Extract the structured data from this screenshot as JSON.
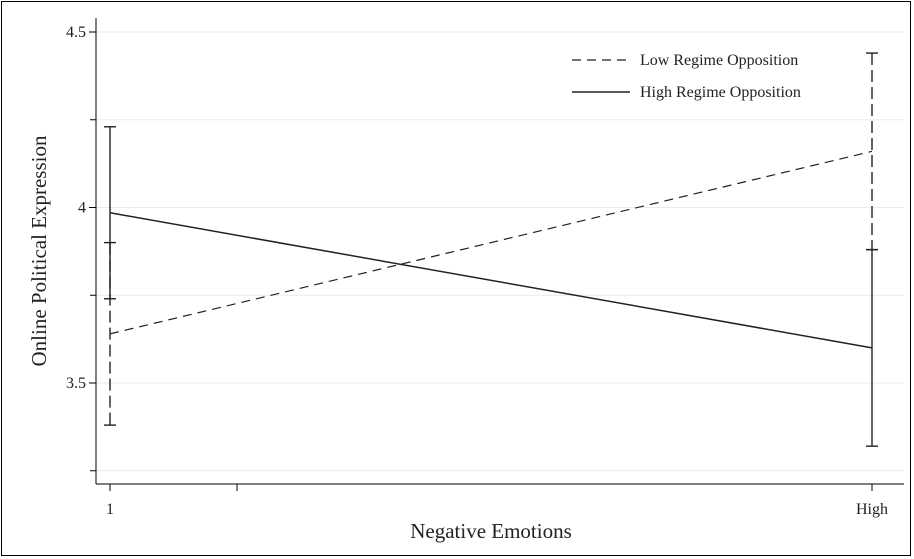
{
  "chart_data": {
    "type": "line",
    "xlabel": "Negative Emotions",
    "ylabel": "Online Political Expression",
    "x_categories": [
      "1",
      "High"
    ],
    "ylim": [
      3.25,
      4.55
    ],
    "y_ticks": [
      3.5,
      4,
      4.5
    ],
    "y_tick_labels": [
      "3.5",
      "4",
      "4.5"
    ],
    "grid": true,
    "legend_position": "top-right",
    "series": [
      {
        "name": "Low Regime Opposition",
        "style": "dashed",
        "values": [
          3.64,
          4.16
        ],
        "ci_low": [
          3.38,
          3.88
        ],
        "ci_high": [
          3.9,
          4.44
        ]
      },
      {
        "name": "High Regime Opposition",
        "style": "solid",
        "values": [
          3.985,
          3.6
        ],
        "ci_low": [
          3.74,
          3.32
        ],
        "ci_high": [
          4.23,
          3.88
        ]
      }
    ]
  }
}
